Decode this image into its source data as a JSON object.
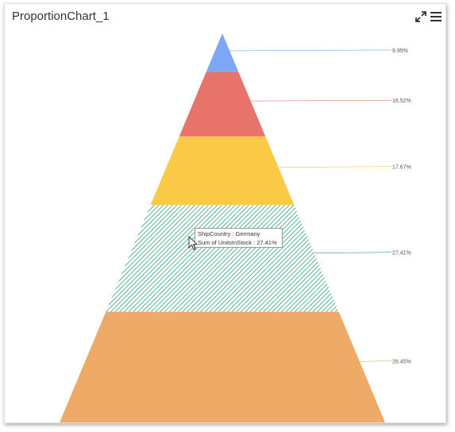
{
  "widget": {
    "title": "ProportionChart_1",
    "toolbar": {
      "expand_icon": "expand-arrows-icon",
      "menu_icon": "hamburger-menu-icon"
    }
  },
  "tooltip": {
    "line1": "ShipCountry : Germany",
    "line2": "Sum of UnitsInStock : 27.41%"
  },
  "chart_data": {
    "type": "pyramid",
    "title": "",
    "series": [
      {
        "category": "",
        "value": 9.95,
        "label": "9.95%",
        "color": "#7ba7f3"
      },
      {
        "category": "",
        "value": 16.52,
        "label": "16.52%",
        "color": "#e7736a"
      },
      {
        "category": "",
        "value": 17.67,
        "label": "17.67%",
        "color": "#fbca46"
      },
      {
        "category": "Germany",
        "value": 27.41,
        "label": "27.41%",
        "color": "#2fa36b",
        "hovered": true
      },
      {
        "category": "",
        "value": 28.45,
        "label": "28.45%",
        "color": "#f0aa68"
      }
    ]
  }
}
